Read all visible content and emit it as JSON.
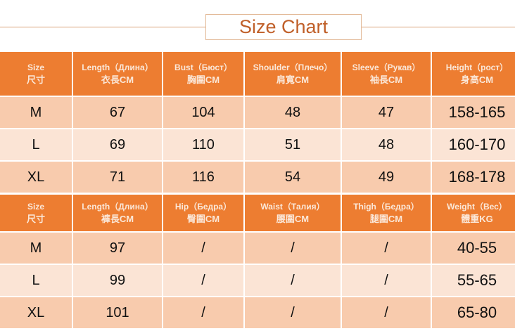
{
  "title": "Size Chart",
  "colors": {
    "header": "#ED7D31",
    "row_dark": "#F8CBAD",
    "row_light": "#FBE4D5",
    "title": "#C0602A"
  },
  "top_table": {
    "headers": [
      {
        "en": "Size",
        "cn": "尺寸"
      },
      {
        "en": "Length（Длина）",
        "cn": "衣長CM"
      },
      {
        "en": "Bust（Бюст）",
        "cn": "胸圍CM"
      },
      {
        "en": "Shoulder（Плечо）",
        "cn": "肩寬CM"
      },
      {
        "en": "Sleeve（Рукав）",
        "cn": "袖長CM"
      },
      {
        "en": "Height（рост）",
        "cn": "身高CM"
      }
    ],
    "rows": [
      [
        "M",
        "67",
        "104",
        "48",
        "47",
        "158-165"
      ],
      [
        "L",
        "69",
        "110",
        "51",
        "48",
        "160-170"
      ],
      [
        "XL",
        "71",
        "116",
        "54",
        "49",
        "168-178"
      ]
    ]
  },
  "bottom_table": {
    "headers": [
      {
        "en": "Size",
        "cn": "尺寸"
      },
      {
        "en": "Length（Длина）",
        "cn": "褲長CM"
      },
      {
        "en": "Hip（Бедра）",
        "cn": "臀圍CM"
      },
      {
        "en": "Waist（Талия）",
        "cn": "腰圍CM"
      },
      {
        "en": "Thigh（Бедра）",
        "cn": "腿圍CM"
      },
      {
        "en": "Weight（Вес）",
        "cn": "體重KG"
      }
    ],
    "rows": [
      [
        "M",
        "97",
        "/",
        "/",
        "/",
        "40-55"
      ],
      [
        "L",
        "99",
        "/",
        "/",
        "/",
        "55-65"
      ],
      [
        "XL",
        "101",
        "/",
        "/",
        "/",
        "65-80"
      ]
    ]
  }
}
